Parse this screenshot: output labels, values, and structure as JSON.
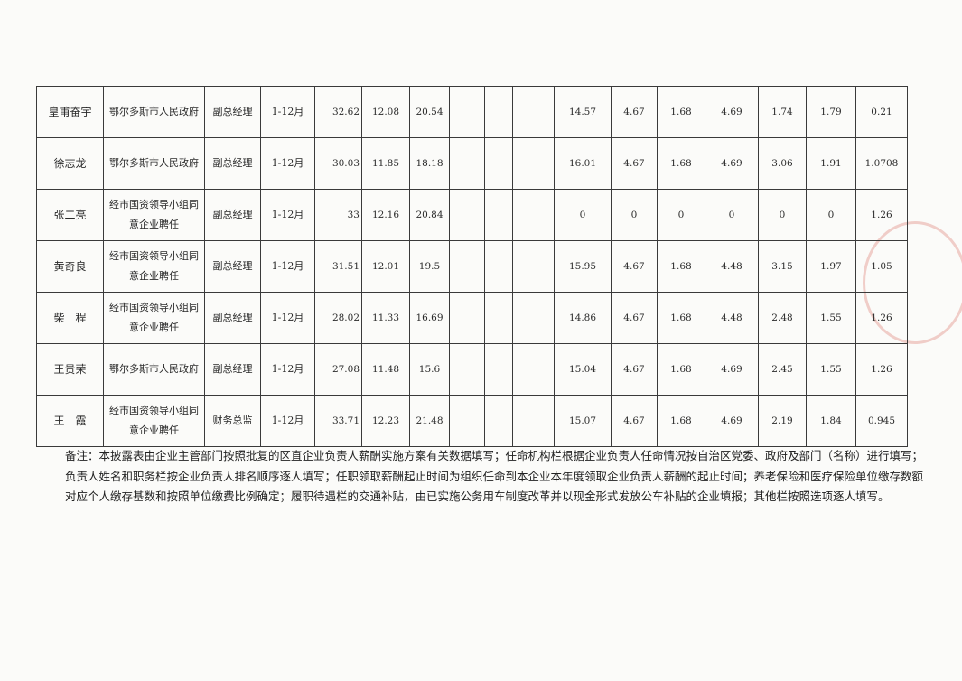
{
  "table": {
    "rows": [
      [
        "皇甫奋宇",
        "鄂尔多斯市人民政府",
        "副总经理",
        "1-12月",
        "32.62",
        "12.08",
        "20.54",
        "",
        "",
        "",
        "14.57",
        "4.67",
        "1.68",
        "4.69",
        "1.74",
        "1.79",
        "0.21"
      ],
      [
        "徐志龙",
        "鄂尔多斯市人民政府",
        "副总经理",
        "1-12月",
        "30.03",
        "11.85",
        "18.18",
        "",
        "",
        "",
        "16.01",
        "4.67",
        "1.68",
        "4.69",
        "3.06",
        "1.91",
        "1.0708"
      ],
      [
        "张二亮",
        "经市国资领导小组同意企业聘任",
        "副总经理",
        "1-12月",
        "33",
        "12.16",
        "20.84",
        "",
        "",
        "",
        "0",
        "0",
        "0",
        "0",
        "0",
        "0",
        "1.26"
      ],
      [
        "黄奇良",
        "经市国资领导小组同意企业聘任",
        "副总经理",
        "1-12月",
        "31.51",
        "12.01",
        "19.5",
        "",
        "",
        "",
        "15.95",
        "4.67",
        "1.68",
        "4.48",
        "3.15",
        "1.97",
        "1.05"
      ],
      [
        "柴　程",
        "经市国资领导小组同意企业聘任",
        "副总经理",
        "1-12月",
        "28.02",
        "11.33",
        "16.69",
        "",
        "",
        "",
        "14.86",
        "4.67",
        "1.68",
        "4.48",
        "2.48",
        "1.55",
        "1.26"
      ],
      [
        "王贵荣",
        "鄂尔多斯市人民政府",
        "副总经理",
        "1-12月",
        "27.08",
        "11.48",
        "15.6",
        "",
        "",
        "",
        "15.04",
        "4.67",
        "1.68",
        "4.69",
        "2.45",
        "1.55",
        "1.26"
      ],
      [
        "王　霞",
        "经市国资领导小组同意企业聘任",
        "财务总监",
        "1-12月",
        "33.71",
        "12.23",
        "21.48",
        "",
        "",
        "",
        "15.07",
        "4.67",
        "1.68",
        "4.69",
        "2.19",
        "1.84",
        "0.945"
      ]
    ]
  },
  "note": "备注：本披露表由企业主管部门按照批复的区直企业负责人薪酬实施方案有关数据填写；任命机构栏根据企业负责人任命情况按自治区党委、政府及部门（名称）进行填写；负责人姓名和职务栏按企业负责人排名顺序逐人填写；任职领取薪酬起止时间为组织任命到本企业本年度领取企业负责人薪酬的起止时间；养老保险和医疗保险单位缴存数额对应个人缴存基数和按照单位缴费比例确定；履职待遇栏的交通补贴，由已实施公务用车制度改革并以现金形式发放公车补贴的企业填报；其他栏按照选项逐人填写。"
}
